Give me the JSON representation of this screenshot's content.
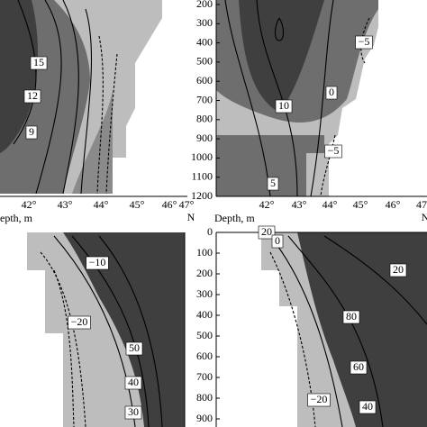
{
  "panels": [
    {
      "xticks": [
        "42°",
        "43°",
        "44°",
        "45°",
        "46°",
        "47°"
      ],
      "x_unit": "N",
      "contour_labels": [
        "15",
        "12",
        "9"
      ]
    },
    {
      "yticks": [
        "200",
        "300",
        "400",
        "500",
        "600",
        "700",
        "800",
        "900",
        "1000",
        "1100",
        "1200"
      ],
      "xticks": [
        "42°",
        "43°",
        "44°",
        "45°",
        "46°",
        "47"
      ],
      "x_unit": "N",
      "contour_labels": [
        "−5",
        "0",
        "10",
        "−5",
        "5"
      ]
    },
    {
      "y_axis_label": "epth, m",
      "contour_labels": [
        "−10",
        "−20",
        "50",
        "40",
        "30"
      ]
    },
    {
      "y_axis_label": "Depth, m",
      "yticks": [
        "0",
        "100",
        "200",
        "300",
        "400",
        "500",
        "600",
        "700",
        "800",
        "900"
      ],
      "contour_labels": [
        "20",
        "0",
        "20",
        "80",
        "60",
        "40",
        "−20"
      ]
    }
  ]
}
